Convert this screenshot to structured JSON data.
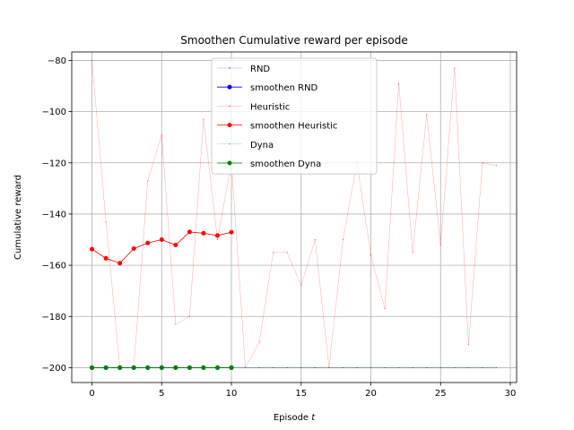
{
  "chart_data": {
    "type": "line",
    "title": "Smoothen Cumulative reward per episode",
    "xlabel": "Episode t",
    "xlabel_main": "Episode ",
    "xlabel_var": "t",
    "ylabel": "Cumulative reward",
    "xlim": [
      -1.45,
      30.45
    ],
    "ylim": [
      -205.8,
      -76.7
    ],
    "xticks": [
      0,
      5,
      10,
      15,
      20,
      25,
      30
    ],
    "yticks": [
      -200,
      -180,
      -160,
      -140,
      -120,
      -100,
      -80
    ],
    "xtick_labels": [
      "0",
      "5",
      "10",
      "15",
      "20",
      "25",
      "30"
    ],
    "ytick_labels": [
      "−200",
      "−180",
      "−160",
      "−140",
      "−120",
      "−100",
      "−80"
    ],
    "grid": true,
    "legend_position": "top-center",
    "series": [
      {
        "name": "RND",
        "color": "#0000ff",
        "style": "raw",
        "x": [
          0,
          1,
          2,
          3,
          4,
          5,
          6,
          7,
          8,
          9,
          10,
          11,
          12,
          13,
          14,
          15,
          16,
          17,
          18,
          19,
          20,
          21,
          22,
          23,
          24,
          25,
          26,
          27,
          28,
          29
        ],
        "y": [
          -200,
          -200,
          -200,
          -200,
          -200,
          -200,
          -200,
          -200,
          -200,
          -200,
          -200,
          -200,
          -200,
          -200,
          -200,
          -200,
          -200,
          -200,
          -200,
          -200,
          -200,
          -200,
          -200,
          -200,
          -200,
          -200,
          -200,
          -200,
          -200,
          -200
        ]
      },
      {
        "name": "smoothen RND",
        "color": "#0000ff",
        "style": "smooth",
        "x": [
          0,
          1,
          2,
          3,
          4,
          5,
          6,
          7,
          8,
          9,
          10
        ],
        "y": [
          -200,
          -200,
          -200,
          -200,
          -200,
          -200,
          -200,
          -200,
          -200,
          -200,
          -200
        ]
      },
      {
        "name": "Heuristic",
        "color": "#ff0000",
        "style": "raw",
        "x": [
          0,
          1,
          2,
          3,
          4,
          5,
          6,
          7,
          8,
          9,
          10,
          11,
          12,
          13,
          14,
          15,
          16,
          17,
          18,
          19,
          20,
          21,
          22,
          23,
          24,
          25,
          26,
          27,
          28,
          29
        ],
        "y": [
          -80,
          -143,
          -200,
          -200,
          -127,
          -109,
          -183,
          -180,
          -103,
          -150,
          -120,
          -200,
          -190,
          -155,
          -155,
          -168,
          -150,
          -200,
          -150,
          -120,
          -156,
          -177,
          -89,
          -155,
          -101,
          -152,
          -83,
          -191,
          -120,
          -121
        ]
      },
      {
        "name": "smoothen Heuristic",
        "color": "#ff0000",
        "style": "smooth",
        "x": [
          0,
          1,
          2,
          3,
          4,
          5,
          6,
          7,
          8,
          9,
          10
        ],
        "y": [
          -153.7,
          -157.3,
          -159.2,
          -153.5,
          -151.3,
          -150,
          -152.1,
          -147,
          -147.5,
          -148.4,
          -147.1
        ]
      },
      {
        "name": "Dyna",
        "color": "#008000",
        "style": "raw",
        "x": [
          0,
          1,
          2,
          3,
          4,
          5,
          6,
          7,
          8,
          9,
          10,
          11,
          12,
          13,
          14,
          15,
          16,
          17,
          18,
          19,
          20,
          21,
          22,
          23,
          24,
          25,
          26,
          27,
          28,
          29
        ],
        "y": [
          -200,
          -200,
          -200,
          -200,
          -200,
          -200,
          -200,
          -200,
          -200,
          -200,
          -200,
          -200,
          -200,
          -200,
          -200,
          -200,
          -200,
          -200,
          -200,
          -200,
          -200,
          -200,
          -200,
          -200,
          -200,
          -200,
          -200,
          -200,
          -200,
          -200
        ]
      },
      {
        "name": "smoothen Dyna",
        "color": "#008000",
        "style": "smooth",
        "x": [
          0,
          1,
          2,
          3,
          4,
          5,
          6,
          7,
          8,
          9,
          10
        ],
        "y": [
          -200,
          -200,
          -200,
          -200,
          -200,
          -200,
          -200,
          -200,
          -200,
          -200,
          -200
        ]
      }
    ]
  }
}
